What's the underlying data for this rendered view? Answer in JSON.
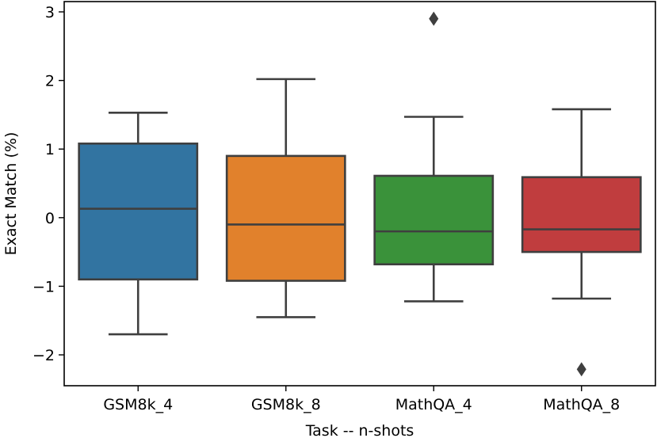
{
  "chart_data": {
    "type": "box",
    "title": "",
    "xlabel": "Task -- n-shots",
    "ylabel": "Exact Match (%)",
    "ylim": [
      -2.45,
      3.15
    ],
    "yticks": [
      "3",
      "2",
      "1",
      "0",
      "−1",
      "−2"
    ],
    "ytick_values": [
      3,
      2,
      1,
      0,
      -1,
      -2
    ],
    "categories": [
      "GSM8k_4",
      "GSM8k_8",
      "MathQA_4",
      "MathQA_8"
    ],
    "boxes": [
      {
        "whisker_low": -1.7,
        "q1": -0.9,
        "median": 0.13,
        "q3": 1.08,
        "whisker_high": 1.53,
        "outliers": [],
        "color": "#3274a1"
      },
      {
        "whisker_low": -1.45,
        "q1": -0.92,
        "median": -0.1,
        "q3": 0.9,
        "whisker_high": 2.02,
        "outliers": [],
        "color": "#e1812c"
      },
      {
        "whisker_low": -1.22,
        "q1": -0.68,
        "median": -0.2,
        "q3": 0.61,
        "whisker_high": 1.47,
        "outliers": [
          2.9
        ],
        "color": "#3a923a"
      },
      {
        "whisker_low": -1.18,
        "q1": -0.5,
        "median": -0.17,
        "q3": 0.59,
        "whisker_high": 1.58,
        "outliers": [
          -2.21
        ],
        "color": "#c03d3e"
      }
    ],
    "grid": false,
    "legend": false
  }
}
